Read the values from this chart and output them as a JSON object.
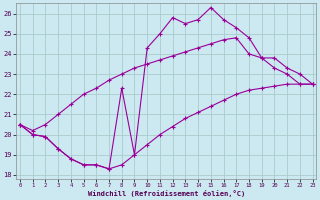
{
  "xlabel": "Windchill (Refroidissement éolien,°C)",
  "background_color": "#cce8f0",
  "grid_color": "#aacccc",
  "line_color": "#990099",
  "yticks": [
    18,
    19,
    20,
    21,
    22,
    23,
    24,
    25,
    26
  ],
  "xticks": [
    0,
    1,
    2,
    3,
    4,
    5,
    6,
    7,
    8,
    9,
    10,
    11,
    12,
    13,
    14,
    15,
    16,
    17,
    18,
    19,
    20,
    21,
    22,
    23
  ],
  "line_jagged_y": [
    20.5,
    20.0,
    19.9,
    19.3,
    18.8,
    18.5,
    18.5,
    18.3,
    22.3,
    19.0,
    24.3,
    25.0,
    25.8,
    25.5,
    25.7,
    26.3,
    25.7,
    25.3,
    24.8,
    23.8,
    23.3,
    23.0,
    22.5,
    22.5
  ],
  "line_upper_y": [
    20.5,
    20.2,
    20.5,
    21.0,
    21.5,
    22.0,
    22.3,
    22.7,
    23.0,
    23.3,
    23.5,
    23.7,
    23.9,
    24.1,
    24.3,
    24.5,
    24.7,
    24.8,
    24.0,
    23.8,
    23.8,
    23.3,
    23.0,
    22.5
  ],
  "line_lower_y": [
    20.5,
    20.0,
    19.9,
    19.3,
    18.8,
    18.5,
    18.5,
    18.3,
    18.5,
    19.0,
    19.5,
    20.0,
    20.4,
    20.8,
    21.1,
    21.4,
    21.7,
    22.0,
    22.2,
    22.3,
    22.4,
    22.5,
    22.5,
    22.5
  ]
}
